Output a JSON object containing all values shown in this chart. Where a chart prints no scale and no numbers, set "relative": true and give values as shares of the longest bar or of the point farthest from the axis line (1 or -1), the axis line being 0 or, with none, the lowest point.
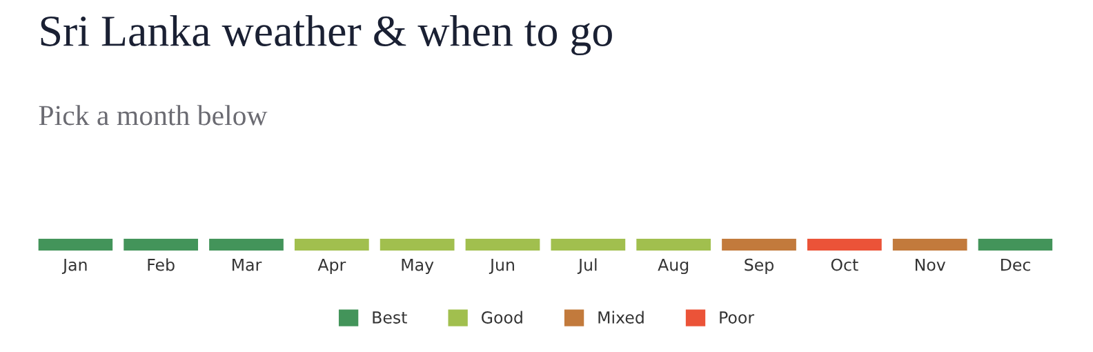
{
  "chart_data": {
    "type": "bar",
    "title": "Sri Lanka weather & when to go",
    "subtitle": "Pick a month below",
    "categories": [
      "Jan",
      "Feb",
      "Mar",
      "Apr",
      "May",
      "Jun",
      "Jul",
      "Aug",
      "Sep",
      "Oct",
      "Nov",
      "Dec"
    ],
    "relative": true,
    "legend": "bottom",
    "grid": false,
    "series": [
      {
        "name": "Best",
        "color": "#43945a",
        "values": [
          1,
          1,
          1,
          null,
          null,
          null,
          null,
          null,
          null,
          null,
          null,
          1
        ]
      },
      {
        "name": "Good",
        "color": "#a1bf4e",
        "values": [
          null,
          null,
          null,
          1,
          1,
          1,
          1,
          1,
          null,
          null,
          null,
          null
        ]
      },
      {
        "name": "Mixed",
        "color": "#c27a3c",
        "values": [
          null,
          null,
          null,
          null,
          null,
          null,
          null,
          null,
          1,
          null,
          1,
          null
        ]
      },
      {
        "name": "Poor",
        "color": "#eb5338",
        "values": [
          null,
          null,
          null,
          null,
          null,
          null,
          null,
          null,
          null,
          1,
          null,
          null
        ]
      }
    ]
  }
}
